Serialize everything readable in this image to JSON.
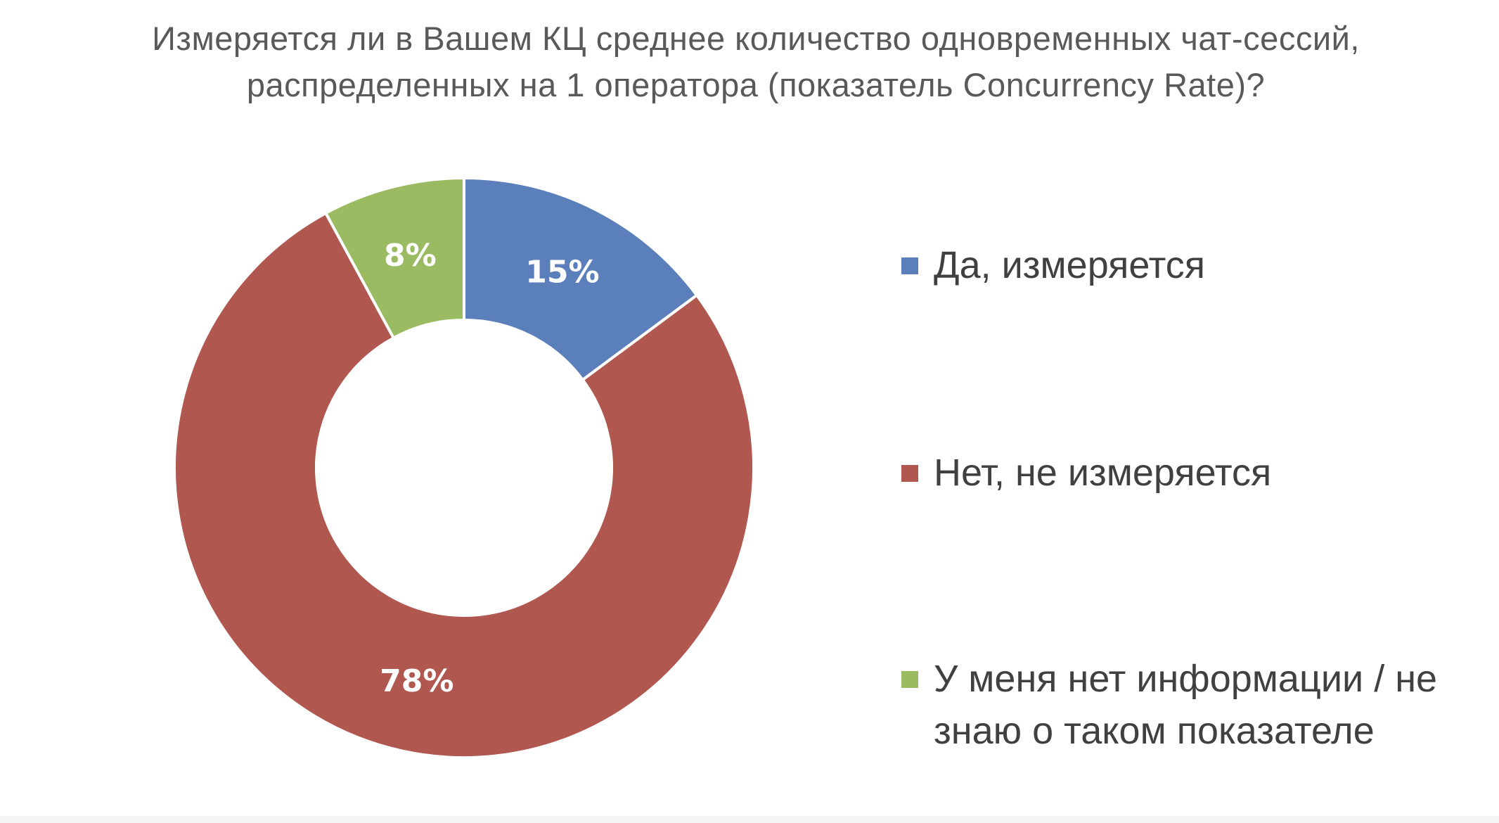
{
  "chart_data": {
    "type": "pie",
    "variant": "donut",
    "title": "Измеряется ли в Вашем КЦ среднее количество одновременных чат-сессий, распределенных на 1 оператора (показатель Concurrency Rate)?",
    "legend_position": "right",
    "slices": [
      {
        "label": "Да, измеряется",
        "value": 15,
        "display": "15%",
        "color": "#5b7fba"
      },
      {
        "label": "Нет, не измеряется",
        "value": 78,
        "display": "78%",
        "color": "#b0574f"
      },
      {
        "label": "У меня нет информации / не знаю о таком показателе",
        "value": 8,
        "display": "8%",
        "color": "#9bbb62"
      }
    ]
  }
}
